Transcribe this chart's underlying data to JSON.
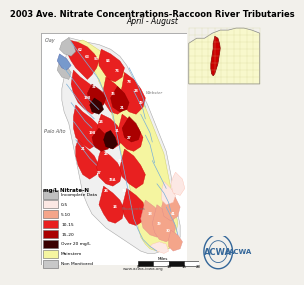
{
  "title_line1": "2003 Ave. Nitrate Concentrations-Raccoon River Tributaries",
  "title_line2": "April - August",
  "title_fontsize": 6.0,
  "subtitle_fontsize": 5.5,
  "fig_bg": "#f2f0eb",
  "legend_title": "mg/L Nitrate-N",
  "legend_items": [
    {
      "label": "Incomplete Data",
      "color": "#c0c0c0"
    },
    {
      "label": "0-5",
      "color": "#fce8e4"
    },
    {
      "label": "5-10",
      "color": "#f4a58a"
    },
    {
      "label": "10-15",
      "color": "#e82020"
    },
    {
      "label": "15-20",
      "color": "#aa0000"
    },
    {
      "label": "Over 20 mg/L",
      "color": "#3a0000"
    },
    {
      "label": "Mainstem",
      "color": "#f5f5a0"
    },
    {
      "label": "Non Monitored",
      "color": "#c8c8c8"
    }
  ],
  "map_bg": "#ffffff",
  "border_color": "#999999",
  "river_color": "#7ab0d8",
  "website": "www.acwa-iowa.org",
  "inset_bg": "#f8f8cc",
  "inset_border": "#888888",
  "county_bg": "#f0f0f0",
  "county_line": "#aaaaaa"
}
